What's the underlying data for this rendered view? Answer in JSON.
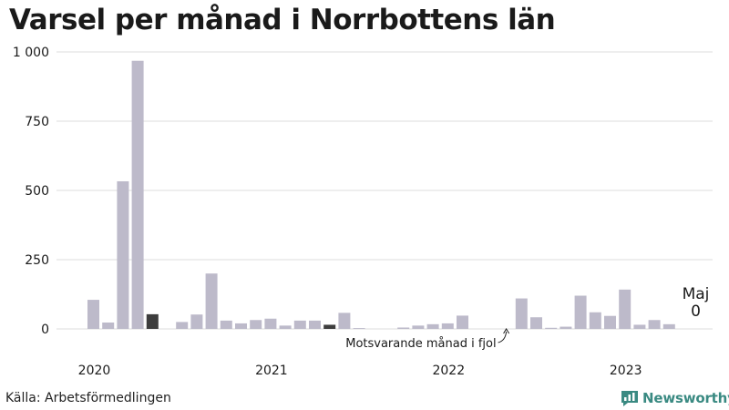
{
  "title": "Varsel per månad i Norrbottens län",
  "source": "Källa: Arbetsförmedlingen",
  "logo_text": "Newsworthy",
  "colors": {
    "bar": "#bdbaca",
    "highlight": "#3d3d3d",
    "grid": "#dddddd",
    "logo": "#3a8a82"
  },
  "chart_data": {
    "type": "bar",
    "title": "Varsel per månad i Norrbottens län",
    "xlabel": "",
    "ylabel": "",
    "ylim": [
      0,
      1000
    ],
    "yticks": [
      0,
      250,
      500,
      750,
      1000
    ],
    "ytick_labels": [
      "0",
      "250",
      "500",
      "750",
      "1 000"
    ],
    "xtick_labels": [
      "2020",
      "2021",
      "2022",
      "2023"
    ],
    "grid": true,
    "categories": [
      "2020-01",
      "2020-02",
      "2020-03",
      "2020-04",
      "2020-05",
      "2020-06",
      "2020-07",
      "2020-08",
      "2020-09",
      "2020-10",
      "2020-11",
      "2020-12",
      "2021-01",
      "2021-02",
      "2021-03",
      "2021-04",
      "2021-05",
      "2021-06",
      "2021-07",
      "2021-08",
      "2021-09",
      "2021-10",
      "2021-11",
      "2021-12",
      "2022-01",
      "2022-02",
      "2022-03",
      "2022-04",
      "2022-05",
      "2022-06",
      "2022-07",
      "2022-08",
      "2022-09",
      "2022-10",
      "2022-11",
      "2022-12",
      "2023-01",
      "2023-02",
      "2023-03",
      "2023-04",
      "2023-05"
    ],
    "values": [
      105,
      23,
      533,
      968,
      53,
      0,
      25,
      52,
      200,
      30,
      20,
      32,
      37,
      12,
      30,
      30,
      15,
      58,
      3,
      0,
      0,
      5,
      12,
      17,
      20,
      48,
      0,
      0,
      0,
      110,
      42,
      4,
      8,
      120,
      60,
      47,
      142,
      15,
      32,
      17,
      0
    ],
    "highlighted": [
      "2020-05",
      "2021-05"
    ],
    "annotations": [
      {
        "text": "Motsvarande månad i fjol",
        "target": "2022-05"
      }
    ],
    "last_label": {
      "month": "Maj",
      "value": "0"
    }
  }
}
